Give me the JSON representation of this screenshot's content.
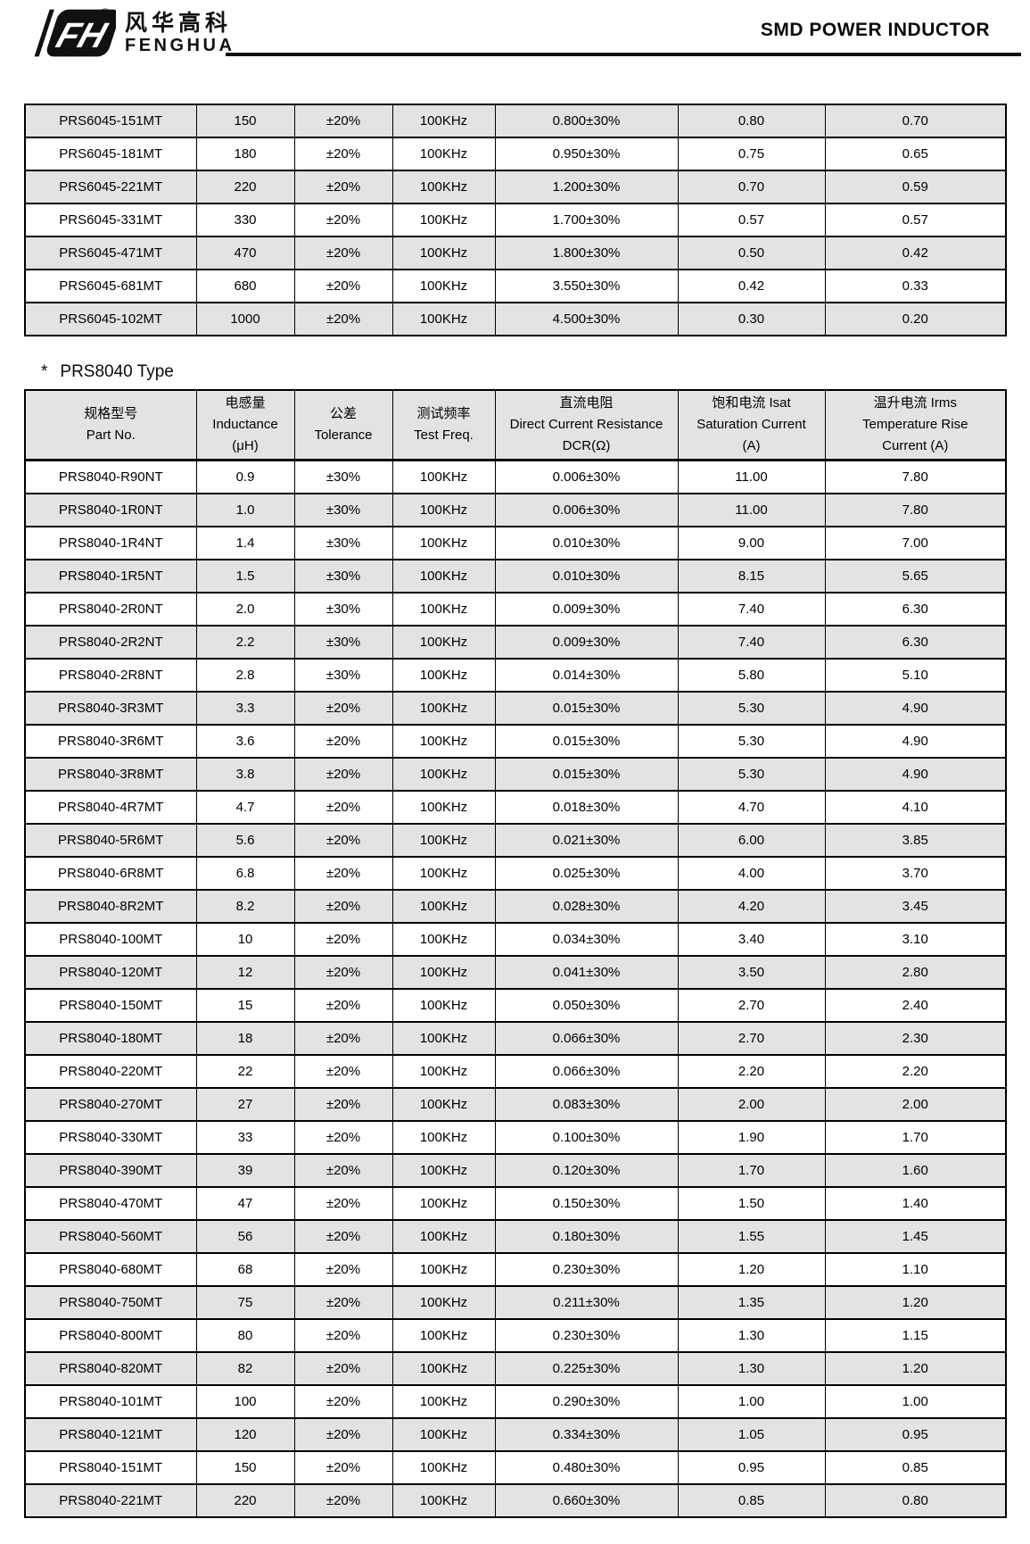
{
  "header": {
    "brand_cn": "风华高科",
    "brand_en": "FENGHUA",
    "logo_mark_letters": "FH",
    "registered_symbol": "®",
    "title": "SMD POWER INDUCTOR"
  },
  "section": {
    "marker": "*",
    "title": "PRS8040 Type"
  },
  "colors": {
    "row_alt_background": "#e3e3e3",
    "border": "#000000",
    "text": "#000000",
    "header_rule": "#111111"
  },
  "top_table": {
    "rows": [
      [
        "PRS6045-151MT",
        "150",
        "±20%",
        "100KHz",
        "0.800±30%",
        "0.80",
        "0.70"
      ],
      [
        "PRS6045-181MT",
        "180",
        "±20%",
        "100KHz",
        "0.950±30%",
        "0.75",
        "0.65"
      ],
      [
        "PRS6045-221MT",
        "220",
        "±20%",
        "100KHz",
        "1.200±30%",
        "0.70",
        "0.59"
      ],
      [
        "PRS6045-331MT",
        "330",
        "±20%",
        "100KHz",
        "1.700±30%",
        "0.57",
        "0.57"
      ],
      [
        "PRS6045-471MT",
        "470",
        "±20%",
        "100KHz",
        "1.800±30%",
        "0.50",
        "0.42"
      ],
      [
        "PRS6045-681MT",
        "680",
        "±20%",
        "100KHz",
        "3.550±30%",
        "0.42",
        "0.33"
      ],
      [
        "PRS6045-102MT",
        "1000",
        "±20%",
        "100KHz",
        "4.500±30%",
        "0.30",
        "0.20"
      ]
    ]
  },
  "main_table": {
    "headers": [
      {
        "id": "part-no",
        "lines": [
          "规格型号",
          "Part No."
        ]
      },
      {
        "id": "inductance",
        "lines": [
          "电感量",
          "Inductance",
          "(μH)"
        ]
      },
      {
        "id": "tolerance",
        "lines": [
          "公差",
          "Tolerance"
        ]
      },
      {
        "id": "test-freq",
        "lines": [
          "测试频率",
          "Test Freq."
        ]
      },
      {
        "id": "dcr",
        "lines": [
          "直流电阻",
          "Direct Current Resistance",
          "DCR(Ω)"
        ]
      },
      {
        "id": "isat",
        "lines": [
          "饱和电流  Isat",
          "Saturation Current",
          "(A)"
        ]
      },
      {
        "id": "irms",
        "lines": [
          "温升电流  Irms",
          "Temperature Rise",
          "Current (A)"
        ]
      }
    ],
    "rows": [
      [
        "PRS8040-R90NT",
        "0.9",
        "±30%",
        "100KHz",
        "0.006±30%",
        "11.00",
        "7.80"
      ],
      [
        "PRS8040-1R0NT",
        "1.0",
        "±30%",
        "100KHz",
        "0.006±30%",
        "11.00",
        "7.80"
      ],
      [
        "PRS8040-1R4NT",
        "1.4",
        "±30%",
        "100KHz",
        "0.010±30%",
        "9.00",
        "7.00"
      ],
      [
        "PRS8040-1R5NT",
        "1.5",
        "±30%",
        "100KHz",
        "0.010±30%",
        "8.15",
        "5.65"
      ],
      [
        "PRS8040-2R0NT",
        "2.0",
        "±30%",
        "100KHz",
        "0.009±30%",
        "7.40",
        "6.30"
      ],
      [
        "PRS8040-2R2NT",
        "2.2",
        "±30%",
        "100KHz",
        "0.009±30%",
        "7.40",
        "6.30"
      ],
      [
        "PRS8040-2R8NT",
        "2.8",
        "±30%",
        "100KHz",
        "0.014±30%",
        "5.80",
        "5.10"
      ],
      [
        "PRS8040-3R3MT",
        "3.3",
        "±20%",
        "100KHz",
        "0.015±30%",
        "5.30",
        "4.90"
      ],
      [
        "PRS8040-3R6MT",
        "3.6",
        "±20%",
        "100KHz",
        "0.015±30%",
        "5.30",
        "4.90"
      ],
      [
        "PRS8040-3R8MT",
        "3.8",
        "±20%",
        "100KHz",
        "0.015±30%",
        "5.30",
        "4.90"
      ],
      [
        "PRS8040-4R7MT",
        "4.7",
        "±20%",
        "100KHz",
        "0.018±30%",
        "4.70",
        "4.10"
      ],
      [
        "PRS8040-5R6MT",
        "5.6",
        "±20%",
        "100KHz",
        "0.021±30%",
        "6.00",
        "3.85"
      ],
      [
        "PRS8040-6R8MT",
        "6.8",
        "±20%",
        "100KHz",
        "0.025±30%",
        "4.00",
        "3.70"
      ],
      [
        "PRS8040-8R2MT",
        "8.2",
        "±20%",
        "100KHz",
        "0.028±30%",
        "4.20",
        "3.45"
      ],
      [
        "PRS8040-100MT",
        "10",
        "±20%",
        "100KHz",
        "0.034±30%",
        "3.40",
        "3.10"
      ],
      [
        "PRS8040-120MT",
        "12",
        "±20%",
        "100KHz",
        "0.041±30%",
        "3.50",
        "2.80"
      ],
      [
        "PRS8040-150MT",
        "15",
        "±20%",
        "100KHz",
        "0.050±30%",
        "2.70",
        "2.40"
      ],
      [
        "PRS8040-180MT",
        "18",
        "±20%",
        "100KHz",
        "0.066±30%",
        "2.70",
        "2.30"
      ],
      [
        "PRS8040-220MT",
        "22",
        "±20%",
        "100KHz",
        "0.066±30%",
        "2.20",
        "2.20"
      ],
      [
        "PRS8040-270MT",
        "27",
        "±20%",
        "100KHz",
        "0.083±30%",
        "2.00",
        "2.00"
      ],
      [
        "PRS8040-330MT",
        "33",
        "±20%",
        "100KHz",
        "0.100±30%",
        "1.90",
        "1.70"
      ],
      [
        "PRS8040-390MT",
        "39",
        "±20%",
        "100KHz",
        "0.120±30%",
        "1.70",
        "1.60"
      ],
      [
        "PRS8040-470MT",
        "47",
        "±20%",
        "100KHz",
        "0.150±30%",
        "1.50",
        "1.40"
      ],
      [
        "PRS8040-560MT",
        "56",
        "±20%",
        "100KHz",
        "0.180±30%",
        "1.55",
        "1.45"
      ],
      [
        "PRS8040-680MT",
        "68",
        "±20%",
        "100KHz",
        "0.230±30%",
        "1.20",
        "1.10"
      ],
      [
        "PRS8040-750MT",
        "75",
        "±20%",
        "100KHz",
        "0.211±30%",
        "1.35",
        "1.20"
      ],
      [
        "PRS8040-800MT",
        "80",
        "±20%",
        "100KHz",
        "0.230±30%",
        "1.30",
        "1.15"
      ],
      [
        "PRS8040-820MT",
        "82",
        "±20%",
        "100KHz",
        "0.225±30%",
        "1.30",
        "1.20"
      ],
      [
        "PRS8040-101MT",
        "100",
        "±20%",
        "100KHz",
        "0.290±30%",
        "1.00",
        "1.00"
      ],
      [
        "PRS8040-121MT",
        "120",
        "±20%",
        "100KHz",
        "0.334±30%",
        "1.05",
        "0.95"
      ],
      [
        "PRS8040-151MT",
        "150",
        "±20%",
        "100KHz",
        "0.480±30%",
        "0.95",
        "0.85"
      ],
      [
        "PRS8040-221MT",
        "220",
        "±20%",
        "100KHz",
        "0.660±30%",
        "0.85",
        "0.80"
      ]
    ]
  }
}
